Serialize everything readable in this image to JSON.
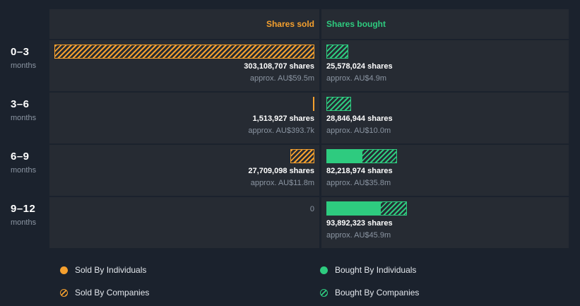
{
  "colors": {
    "orange": "#f5a02e",
    "green": "#2ecb7f"
  },
  "header": {
    "sold_label": "Shares sold",
    "bought_label": "Shares bought"
  },
  "chart_data": {
    "type": "bar",
    "orientation": "horizontal-diverging",
    "unit": "shares",
    "categories": [
      "0–3 months",
      "3–6 months",
      "6–9 months",
      "9–12 months"
    ],
    "rows": [
      {
        "period": "0–3",
        "period_unit": "months",
        "sold": {
          "shares": 303108707,
          "shares_label": "303,108,707 shares",
          "approx_label": "approx. AU$59.5m",
          "individuals_pct": 0,
          "companies_pct": 100
        },
        "bought": {
          "shares": 25578024,
          "shares_label": "25,578,024 shares",
          "approx_label": "approx. AU$4.9m",
          "individuals_pct": 0,
          "companies_pct": 100
        }
      },
      {
        "period": "3–6",
        "period_unit": "months",
        "sold": {
          "shares": 1513927,
          "shares_label": "1,513,927 shares",
          "approx_label": "approx. AU$393.7k",
          "individuals_pct": 0,
          "companies_pct": 100
        },
        "bought": {
          "shares": 28846944,
          "shares_label": "28,846,944 shares",
          "approx_label": "approx. AU$10.0m",
          "individuals_pct": 0,
          "companies_pct": 100
        }
      },
      {
        "period": "6–9",
        "period_unit": "months",
        "sold": {
          "shares": 27709098,
          "shares_label": "27,709,098 shares",
          "approx_label": "approx. AU$11.8m",
          "individuals_pct": 0,
          "companies_pct": 100
        },
        "bought": {
          "shares": 82218974,
          "shares_label": "82,218,974 shares",
          "approx_label": "approx. AU$35.8m",
          "individuals_pct": 50,
          "companies_pct": 50
        }
      },
      {
        "period": "9–12",
        "period_unit": "months",
        "sold": {
          "shares": 0,
          "shares_label": "0",
          "approx_label": "",
          "individuals_pct": 0,
          "companies_pct": 0
        },
        "bought": {
          "shares": 93892323,
          "shares_label": "93,892,323 shares",
          "approx_label": "approx. AU$45.9m",
          "individuals_pct": 67,
          "companies_pct": 33
        }
      }
    ]
  },
  "legend": {
    "sold_individuals": "Sold By Individuals",
    "sold_companies": "Sold By Companies",
    "bought_individuals": "Bought By Individuals",
    "bought_companies": "Bought By Companies"
  }
}
